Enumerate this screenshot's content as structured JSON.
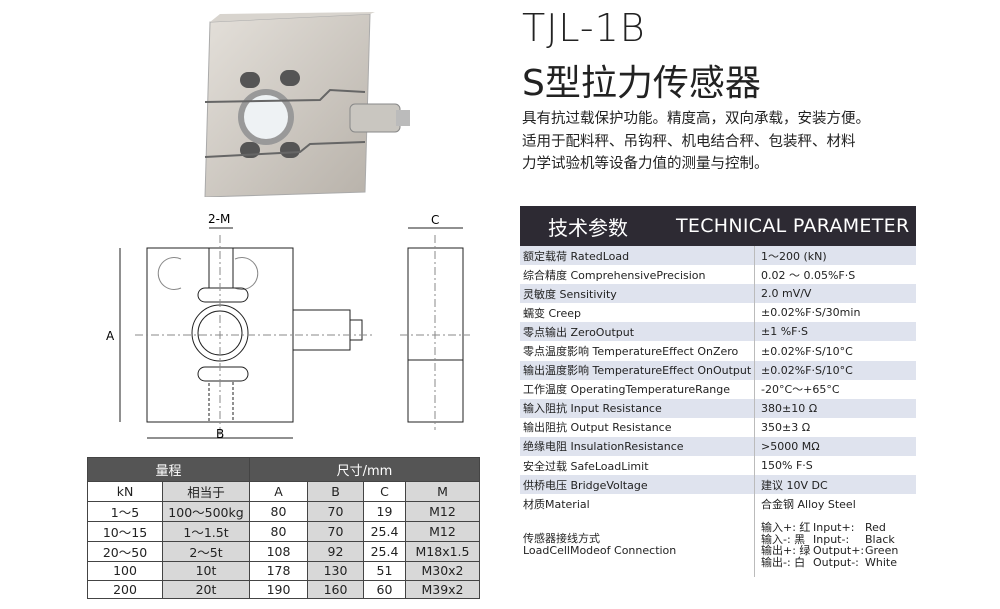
{
  "title": {
    "model": "TJL-1B",
    "name": "S型拉力传感器"
  },
  "description": [
    "具有抗过载保护功能。精度高，双向承载，安装方便。",
    "适用于配料秤、吊钩秤、机电结合秤、包装秤、材料",
    "力学试验机等设备力值的测量与控制。"
  ],
  "drawing": {
    "labels": {
      "thread": "2-M",
      "height": "A",
      "width": "B",
      "thickness": "C"
    }
  },
  "tech": {
    "title_cn": "技术参数",
    "title_en": "TECHNICAL PARAMETER",
    "rows": [
      {
        "k": "额定载荷 RatedLoad",
        "v": "1～200 (kN)"
      },
      {
        "k": "综合精度 ComprehensivePrecision",
        "v": "0.02 ～ 0.05%F·S"
      },
      {
        "k": "灵敏度 Sensitivity",
        "v": "2.0 mV/V"
      },
      {
        "k": "蠕变 Creep",
        "v": "±0.02%F·S/30min"
      },
      {
        "k": "零点输出 ZeroOutput",
        "v": "±1 %F·S"
      },
      {
        "k": "零点温度影响 TemperatureEffect OnZero",
        "v": "±0.02%F·S/10°C"
      },
      {
        "k": "输出温度影响 TemperatureEffect OnOutput",
        "v": "±0.02%F·S/10°C"
      },
      {
        "k": "工作温度 OperatingTemperatureRange",
        "v": "-20°C～+65°C"
      },
      {
        "k": "输入阻抗 Input Resistance",
        "v": "380±10 Ω"
      },
      {
        "k": "输出阻抗 Output Resistance",
        "v": "350±3 Ω"
      },
      {
        "k": "绝缘电阻 InsulationResistance",
        "v": ">5000 MΩ"
      },
      {
        "k": "安全过载 SafeLoadLimit",
        "v": "150% F·S"
      },
      {
        "k": "供桥电压 BridgeVoltage",
        "v": "建议 10V DC"
      },
      {
        "k": "材质Material",
        "v": "合金钢 Alloy Steel"
      }
    ],
    "connection": {
      "k_cn": "传感器接线方式",
      "k_en": "LoadCellModeof Connection",
      "wires": [
        [
          "输入+: 红",
          "Input+:",
          "Red"
        ],
        [
          "输入-: 黑",
          "Input-:",
          "Black"
        ],
        [
          "输出+: 绿",
          "Output+:",
          "Green"
        ],
        [
          "输出-: 白",
          "Output-:",
          "White"
        ]
      ]
    }
  },
  "dims": {
    "group1": "量程",
    "group2": "尺寸/mm",
    "cols": [
      "kN",
      "相当于",
      "A",
      "B",
      "C",
      "M"
    ],
    "rows": [
      [
        "1～5",
        "100～500kg",
        "80",
        "70",
        "19",
        "M12"
      ],
      [
        "10～15",
        "1～1.5t",
        "80",
        "70",
        "25.4",
        "M12"
      ],
      [
        "20～50",
        "2～5t",
        "108",
        "92",
        "25.4",
        "M18x1.5"
      ],
      [
        "100",
        "10t",
        "178",
        "130",
        "51",
        "M30x2"
      ],
      [
        "200",
        "20t",
        "190",
        "160",
        "60",
        "M39x2"
      ]
    ]
  }
}
